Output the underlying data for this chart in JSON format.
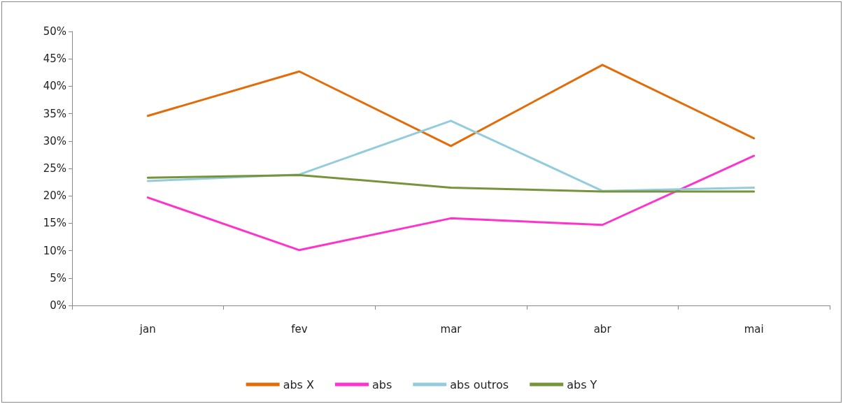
{
  "chart_data": {
    "type": "line",
    "categories": [
      "jan",
      "fev",
      "mar",
      "abr",
      "mai"
    ],
    "series": [
      {
        "name": "abs X",
        "color": "#e36c09",
        "values": [
          34.6,
          42.7,
          29.1,
          43.9,
          30.5
        ]
      },
      {
        "name": "abs",
        "color": "#ff33cc",
        "values": [
          19.7,
          10.1,
          15.9,
          14.7,
          27.3
        ]
      },
      {
        "name": "abs outros",
        "color": "#93cddd",
        "values": [
          22.7,
          23.9,
          33.7,
          20.9,
          21.5
        ]
      },
      {
        "name": "abs Y",
        "color": "#77933c",
        "values": [
          23.3,
          23.8,
          21.5,
          20.8,
          20.8
        ]
      }
    ],
    "ylim": [
      0,
      50
    ],
    "yticks": [
      {
        "value": 0,
        "label": "0%"
      },
      {
        "value": 5,
        "label": "5%"
      },
      {
        "value": 10,
        "label": "10%"
      },
      {
        "value": 15,
        "label": "15%"
      },
      {
        "value": 20,
        "label": "20%"
      },
      {
        "value": 25,
        "label": "25%"
      },
      {
        "value": 30,
        "label": "30%"
      },
      {
        "value": 35,
        "label": "35%"
      },
      {
        "value": 40,
        "label": "40%"
      },
      {
        "value": 45,
        "label": "45%"
      },
      {
        "value": 50,
        "label": "50%"
      }
    ],
    "grid": false,
    "legend": "bottom",
    "marker": "none",
    "line_style": "solid"
  }
}
